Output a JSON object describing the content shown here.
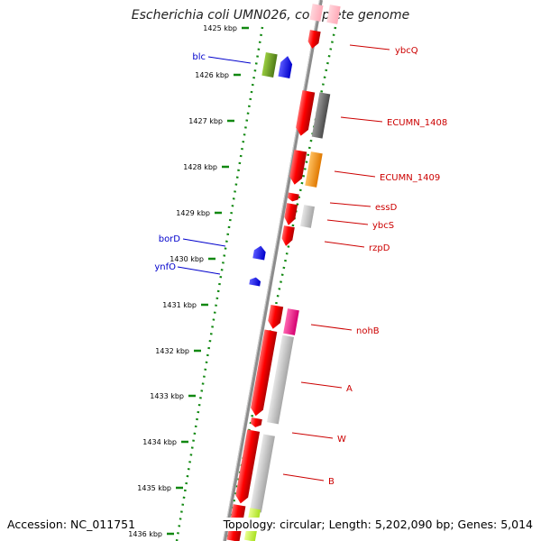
{
  "title": "Escherichia coli UMN026, complete genome",
  "footer": {
    "accession": "Accession: NC_011751",
    "topology": "Topology: circular; Length: 5,202,090 bp; Genes: 5,014"
  },
  "ticks": [
    {
      "label": "1425 kbp"
    },
    {
      "label": "1426 kbp"
    },
    {
      "label": "1427 kbp"
    },
    {
      "label": "1428 kbp"
    },
    {
      "label": "1429 kbp"
    },
    {
      "label": "1430 kbp"
    },
    {
      "label": "1431 kbp"
    },
    {
      "label": "1432 kbp"
    },
    {
      "label": "1433 kbp"
    },
    {
      "label": "1434 kbp"
    },
    {
      "label": "1435 kbp"
    },
    {
      "label": "1436 kbp"
    }
  ],
  "gene_labels": [
    {
      "text": "blc",
      "color": "#0000cc",
      "side": "left"
    },
    {
      "text": "ybcQ",
      "color": "#cc0000",
      "side": "right"
    },
    {
      "text": "ECUMN_1408",
      "color": "#cc0000",
      "side": "right"
    },
    {
      "text": "ECUMN_1409",
      "color": "#cc0000",
      "side": "right"
    },
    {
      "text": "essD",
      "color": "#cc0000",
      "side": "right"
    },
    {
      "text": "ybcS",
      "color": "#cc0000",
      "side": "right"
    },
    {
      "text": "rzpD",
      "color": "#cc0000",
      "side": "right"
    },
    {
      "text": "borD",
      "color": "#0000cc",
      "side": "left"
    },
    {
      "text": "ynfO",
      "color": "#0000cc",
      "side": "left"
    },
    {
      "text": "nohB",
      "color": "#cc0000",
      "side": "right"
    },
    {
      "text": "A",
      "color": "#cc0000",
      "side": "right"
    },
    {
      "text": "W",
      "color": "#cc0000",
      "side": "right"
    },
    {
      "text": "B",
      "color": "#cc0000",
      "side": "right"
    }
  ],
  "colors": {
    "forward_cds": "#ff0000",
    "reverse_cds": "#0000ff",
    "tick_dots": "#118811",
    "backbone": "#8c8c8c"
  }
}
